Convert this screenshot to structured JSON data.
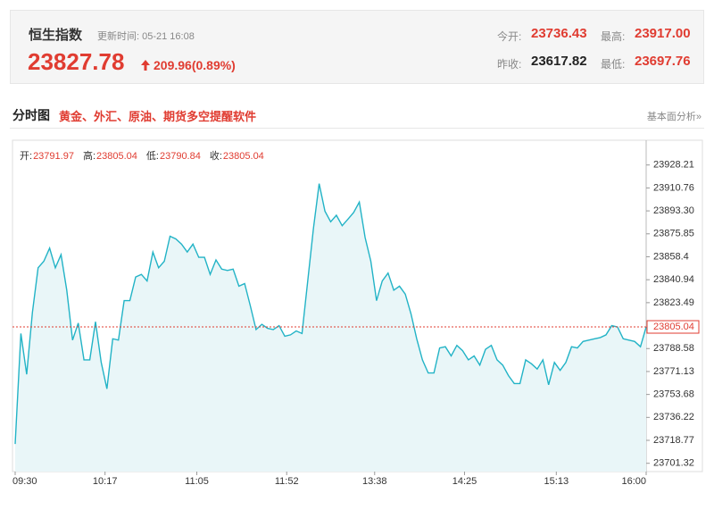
{
  "header": {
    "title": "恒生指数",
    "update_time": "更新时间: 05-21 16:08",
    "price": "23827.78",
    "change": "209.96(0.89%)",
    "open_label": "今开:",
    "open": "23736.43",
    "high_label": "最高:",
    "high": "23917.00",
    "prev_close_label": "昨收:",
    "prev_close": "23617.82",
    "low_label": "最低:",
    "low": "23697.76"
  },
  "section": {
    "title": "分时图",
    "promo_link": "黄金、外汇、原油、期货多空提醒软件",
    "analysis_link": "基本面分析»"
  },
  "chart_data": {
    "type": "line",
    "info": [
      {
        "label": "开:",
        "value": 23791.97
      },
      {
        "label": "高:",
        "value": 23805.04
      },
      {
        "label": "低:",
        "value": 23790.84
      },
      {
        "label": "收:",
        "value": 23805.04
      }
    ],
    "x": [
      0,
      3,
      6,
      9,
      12,
      15,
      18,
      21,
      24,
      27,
      30,
      33,
      36,
      39,
      42,
      45,
      48,
      51,
      54,
      57,
      60,
      63,
      66,
      69,
      72,
      75,
      78,
      81,
      84,
      87,
      90,
      93,
      96,
      99,
      102,
      105,
      108,
      111,
      114,
      117,
      120,
      123,
      126,
      129,
      132,
      135,
      138,
      141,
      144,
      147,
      150,
      153,
      156,
      159,
      162,
      165,
      168,
      171,
      174,
      177,
      180,
      183,
      186,
      189,
      192,
      195,
      198,
      201,
      204,
      207,
      210,
      213,
      216,
      219,
      222,
      225,
      228,
      231,
      234,
      237,
      240,
      243,
      246,
      249,
      252,
      255,
      258,
      261,
      264,
      267,
      270,
      273,
      276,
      279,
      282,
      285,
      288,
      291,
      294,
      297,
      300,
      303,
      306,
      309,
      312,
      315,
      318,
      321,
      324,
      327,
      330
    ],
    "series": [
      {
        "color": "#22b3c6",
        "values": [
          23716,
          23800,
          23769,
          23816,
          23850,
          23855,
          23865,
          23850,
          23860,
          23833,
          23795,
          23808,
          23780,
          23780,
          23809,
          23778,
          23758,
          23796,
          23795,
          23825,
          23825,
          23843,
          23845,
          23840,
          23862,
          23850,
          23855,
          23874,
          23872,
          23868,
          23862,
          23868,
          23858,
          23858,
          23845,
          23856,
          23849,
          23848,
          23849,
          23836,
          23838,
          23821,
          23803,
          23807,
          23804,
          23803,
          23806,
          23798,
          23799,
          23802,
          23800,
          23840,
          23880,
          23914,
          23893,
          23885,
          23890,
          23882,
          23887,
          23892,
          23900,
          23873,
          23855,
          23825,
          23840,
          23846,
          23833,
          23836,
          23830,
          23815,
          23796,
          23780,
          23770,
          23770,
          23789,
          23790,
          23783,
          23791,
          23787,
          23780,
          23783,
          23776,
          23788,
          23791,
          23780,
          23776,
          23768,
          23762,
          23762,
          23780,
          23777,
          23773,
          23780,
          23761,
          23778,
          23772,
          23778,
          23790,
          23789,
          23794,
          23795,
          23796,
          23797,
          23799,
          23806,
          23805,
          23796,
          23795,
          23794,
          23790,
          23805.04
        ]
      }
    ],
    "fill": "#e9f6f8",
    "last_price": 23805.04,
    "last_price_color": "#e03c31",
    "xlim": [
      0,
      330
    ],
    "xticks": [
      {
        "value": 0,
        "label": "09:30"
      },
      {
        "value": 47,
        "label": "10:17"
      },
      {
        "value": 95,
        "label": "11:05"
      },
      {
        "value": 142,
        "label": "11:52"
      },
      {
        "value": 188,
        "label": "13:38"
      },
      {
        "value": 235,
        "label": "14:25"
      },
      {
        "value": 283,
        "label": "15:13"
      },
      {
        "value": 330,
        "label": "16:00"
      }
    ],
    "ylim": [
      23695,
      23945
    ],
    "yticks": [
      23928.21,
      23910.76,
      {
        "value": 23893.3,
        "label": "23893.30"
      },
      23875.85,
      23858.4,
      23840.94,
      23823.49,
      23788.58,
      23771.13,
      23753.68,
      23736.22,
      23718.77,
      23701.32
    ]
  }
}
